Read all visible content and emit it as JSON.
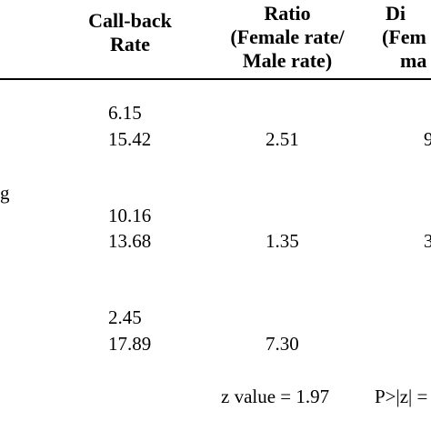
{
  "table": {
    "headers": {
      "callback": [
        "Call-back",
        "Rate"
      ],
      "ratio": [
        "Ratio",
        "(Female rate/",
        "Male rate)"
      ],
      "diff_partial": [
        "Di",
        "(Fem",
        "ma"
      ]
    },
    "row_label_fragment": "g",
    "groups": [
      {
        "rates": [
          "6.15",
          "15.42"
        ],
        "ratio": "2.51",
        "diff_partial": "9"
      },
      {
        "rates": [
          "10.16",
          "13.68"
        ],
        "ratio": "1.35",
        "diff_partial": "3"
      },
      {
        "rates": [
          "2.45",
          "17.89"
        ],
        "ratio": "7.30",
        "diff_partial": ""
      }
    ],
    "footer": {
      "z_value": "z value = 1.97",
      "p_value_partial": "P>|z| ="
    }
  }
}
